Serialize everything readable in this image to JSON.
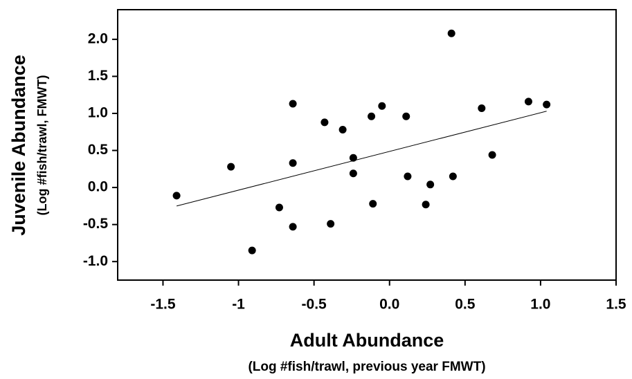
{
  "chart_data": {
    "type": "scatter",
    "x_label": "Adult Abundance",
    "x_sublabel": "(Log #fish/trawl, previous year FMWT)",
    "y_label": "Juvenile Abundance",
    "y_sublabel": "(Log #fish/trawl, FMWT)",
    "xlim": [
      -1.8,
      1.5
    ],
    "ylim": [
      -1.25,
      2.4
    ],
    "xticks": [
      -1.5,
      -1,
      -0.5,
      {
        "value": 0,
        "label": "0.0"
      },
      0.5,
      {
        "value": 1,
        "label": "1.0"
      },
      1.5
    ],
    "yticks": [
      {
        "value": -1,
        "label": "-1.0"
      },
      -0.5,
      {
        "value": 0,
        "label": "0.0"
      },
      0.5,
      {
        "value": 1,
        "label": "1.0"
      },
      1.5,
      {
        "value": 2,
        "label": "2.0"
      }
    ],
    "color": "#000000",
    "series": [
      {
        "color": "#000000",
        "x": [
          -1.41,
          -1.05,
          -0.91,
          -0.73,
          -0.64,
          -0.64,
          -0.64,
          -0.43,
          -0.39,
          -0.31,
          -0.24,
          -0.24,
          -0.12,
          -0.11,
          -0.05,
          0.11,
          0.12,
          0.24,
          0.27,
          0.41,
          0.42,
          0.61,
          0.68,
          0.92,
          1.04
        ],
        "values": [
          -0.11,
          0.28,
          -0.85,
          -0.27,
          1.13,
          0.33,
          -0.53,
          0.88,
          -0.49,
          0.78,
          0.4,
          0.19,
          0.96,
          -0.22,
          1.1,
          0.96,
          0.15,
          -0.23,
          0.04,
          2.08,
          0.15,
          1.07,
          0.44,
          1.16,
          1.12
        ]
      }
    ],
    "fit": {
      "x": [
        -1.41,
        1.04
      ],
      "values": [
        -0.25,
        1.03
      ]
    }
  }
}
